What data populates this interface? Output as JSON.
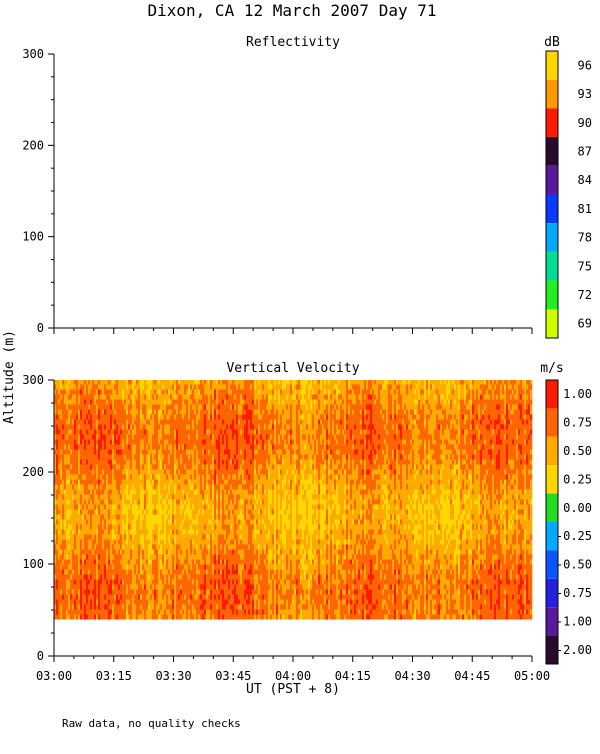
{
  "title": "Dixon, CA 12 March 2007  Day  71",
  "ylabel": "Altitude (m)",
  "xlabel": "UT  (PST + 8)",
  "footnote": "Raw data, no quality checks",
  "x_ticks": [
    "03:00",
    "03:15",
    "03:30",
    "03:45",
    "04:00",
    "04:15",
    "04:30",
    "04:45",
    "05:00"
  ],
  "chart_data": [
    {
      "type": "heatmap",
      "title": "Reflectivity",
      "xlabel": "UT  (PST + 8)",
      "ylabel": "Altitude (m)",
      "xlim": [
        "03:00",
        "05:00"
      ],
      "ylim": [
        0,
        300
      ],
      "y_ticks": [
        0,
        100,
        200,
        300
      ],
      "colorbar": {
        "unit": "dB",
        "labels": [
          "96",
          "93",
          "90",
          "87",
          "84",
          "81",
          "78",
          "75",
          "72",
          "69"
        ],
        "colors": [
          "#ffd700",
          "#ff9900",
          "#ff1a00",
          "#2a0a2a",
          "#5a1aa0",
          "#0a3aff",
          "#00aaff",
          "#00dd99",
          "#22ee22",
          "#ccff00"
        ]
      },
      "data": "no echoes shown"
    },
    {
      "type": "heatmap",
      "title": "Vertical Velocity",
      "xlabel": "UT  (PST + 8)",
      "ylabel": "Altitude (m)",
      "xlim": [
        "03:00",
        "05:00"
      ],
      "ylim": [
        0,
        300
      ],
      "y_ticks": [
        0,
        100,
        200,
        300
      ],
      "data_altitude_range": [
        40,
        300
      ],
      "dominant_values": [
        0.5,
        0.75,
        1.0
      ],
      "colorbar": {
        "unit": "m/s",
        "labels": [
          "1.00",
          "0.75",
          "0.50",
          "0.25",
          "0.00",
          "-0.25",
          "-0.50",
          "-0.75",
          "-1.00",
          "-2.00"
        ],
        "colors": [
          "#ff1a00",
          "#ff6600",
          "#ffaa00",
          "#ffd700",
          "#22dd22",
          "#00aaff",
          "#0a55ff",
          "#2222dd",
          "#5a1aa0",
          "#2a0a2a"
        ]
      }
    }
  ]
}
